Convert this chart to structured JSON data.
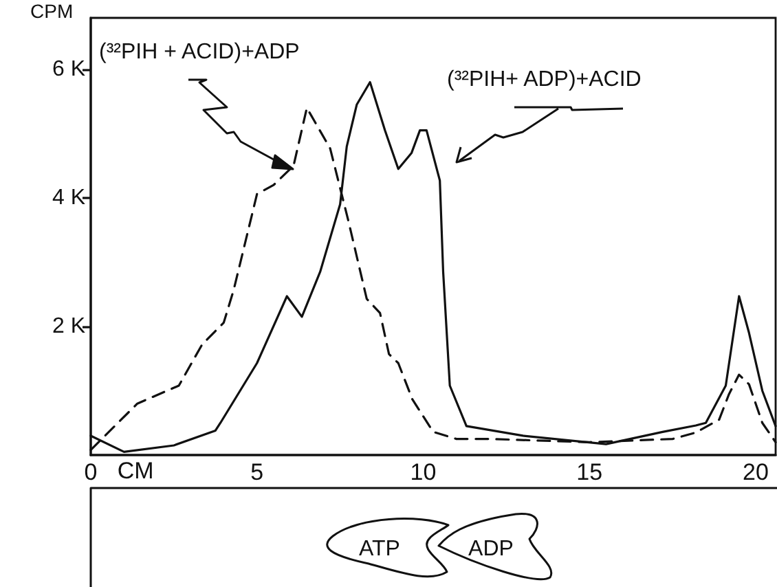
{
  "chart_data": {
    "type": "line",
    "xlabel": "CM",
    "ylabel": "CPM",
    "xlim": [
      0,
      20.6
    ],
    "xticks": [
      0,
      5,
      10,
      15,
      20
    ],
    "ylim": [
      0,
      6800
    ],
    "yticks": [
      {
        "value": 2000,
        "label": "2 K"
      },
      {
        "value": 4000,
        "label": "4 K"
      },
      {
        "value": 6000,
        "label": "6 K"
      }
    ],
    "grid": false,
    "legend": false,
    "marker": "none",
    "annotations": [
      "ATP",
      "ADP"
    ],
    "series": [
      {
        "name": "(³²PIH + ACID)+ADP",
        "color": "#111111",
        "line_style": "dashed",
        "x": [
          0,
          1.4,
          2.65,
          3.35,
          4.0,
          4.3,
          5.0,
          5.5,
          6.1,
          6.5,
          7.2,
          7.75,
          8.3,
          8.7,
          8.97,
          9.25,
          9.67,
          10.3,
          11,
          12,
          15,
          17.5,
          18.2,
          18.9,
          19.2,
          19.5,
          19.8,
          20.2,
          20.6
        ],
        "values": [
          80,
          800,
          1080,
          1720,
          2060,
          2570,
          4060,
          4200,
          4500,
          5400,
          4770,
          3640,
          2430,
          2210,
          1570,
          1430,
          870,
          360,
          250,
          250,
          200,
          250,
          350,
          550,
          950,
          1250,
          1100,
          500,
          200
        ]
      },
      {
        "name": "(³²PIH+ ADP)+ACID",
        "color": "#111111",
        "line_style": "solid",
        "x": [
          0,
          1,
          2.5,
          3.75,
          3.9,
          5.0,
          5.9,
          6.35,
          6.9,
          7.5,
          7.7,
          8.0,
          8.4,
          8.85,
          9.25,
          9.65,
          9.9,
          10.1,
          10.5,
          10.6,
          10.8,
          11.3,
          13,
          15.5,
          17.2,
          18.2,
          18.5,
          19.1,
          19.5,
          19.8,
          20.2,
          20.6
        ],
        "values": [
          300,
          50,
          150,
          380,
          500,
          1430,
          2470,
          2150,
          2850,
          3900,
          4800,
          5450,
          5800,
          5050,
          4450,
          4700,
          5050,
          5050,
          4270,
          2850,
          1080,
          450,
          300,
          170,
          360,
          460,
          500,
          1080,
          2470,
          1900,
          1000,
          450
        ]
      }
    ]
  }
}
